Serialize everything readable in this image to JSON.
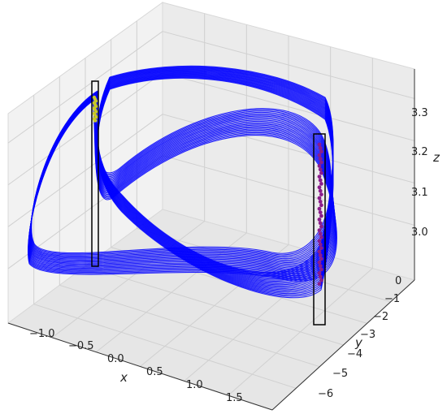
{
  "chart_data": {
    "type": "line3d",
    "title": "",
    "xlabel": "x",
    "ylabel": "y",
    "zlabel": "z",
    "xlim": [
      -1.25,
      1.8
    ],
    "ylim": [
      -6.5,
      0.6
    ],
    "zlim": [
      2.9,
      3.4
    ],
    "x_ticks": [
      "−1.0",
      "−0.5",
      "0.0",
      "0.5",
      "1.0",
      "1.5"
    ],
    "y_ticks": [
      "0",
      "−1",
      "−2",
      "−3",
      "−4",
      "−5",
      "−6"
    ],
    "z_ticks": [
      "3.0",
      "3.1",
      "3.2",
      "3.3"
    ],
    "grid": true,
    "series": [
      {
        "name": "",
        "color": "#0000ff",
        "style": "dense-trajectory"
      },
      {
        "name": "",
        "color": "#c8c828",
        "style": "section-points-left"
      },
      {
        "name": "",
        "color": "#8b1c8b",
        "style": "section-points-right"
      }
    ],
    "section_planes": [
      {
        "color": "#000000",
        "position": "left"
      },
      {
        "color": "#000000",
        "position": "right"
      }
    ]
  }
}
